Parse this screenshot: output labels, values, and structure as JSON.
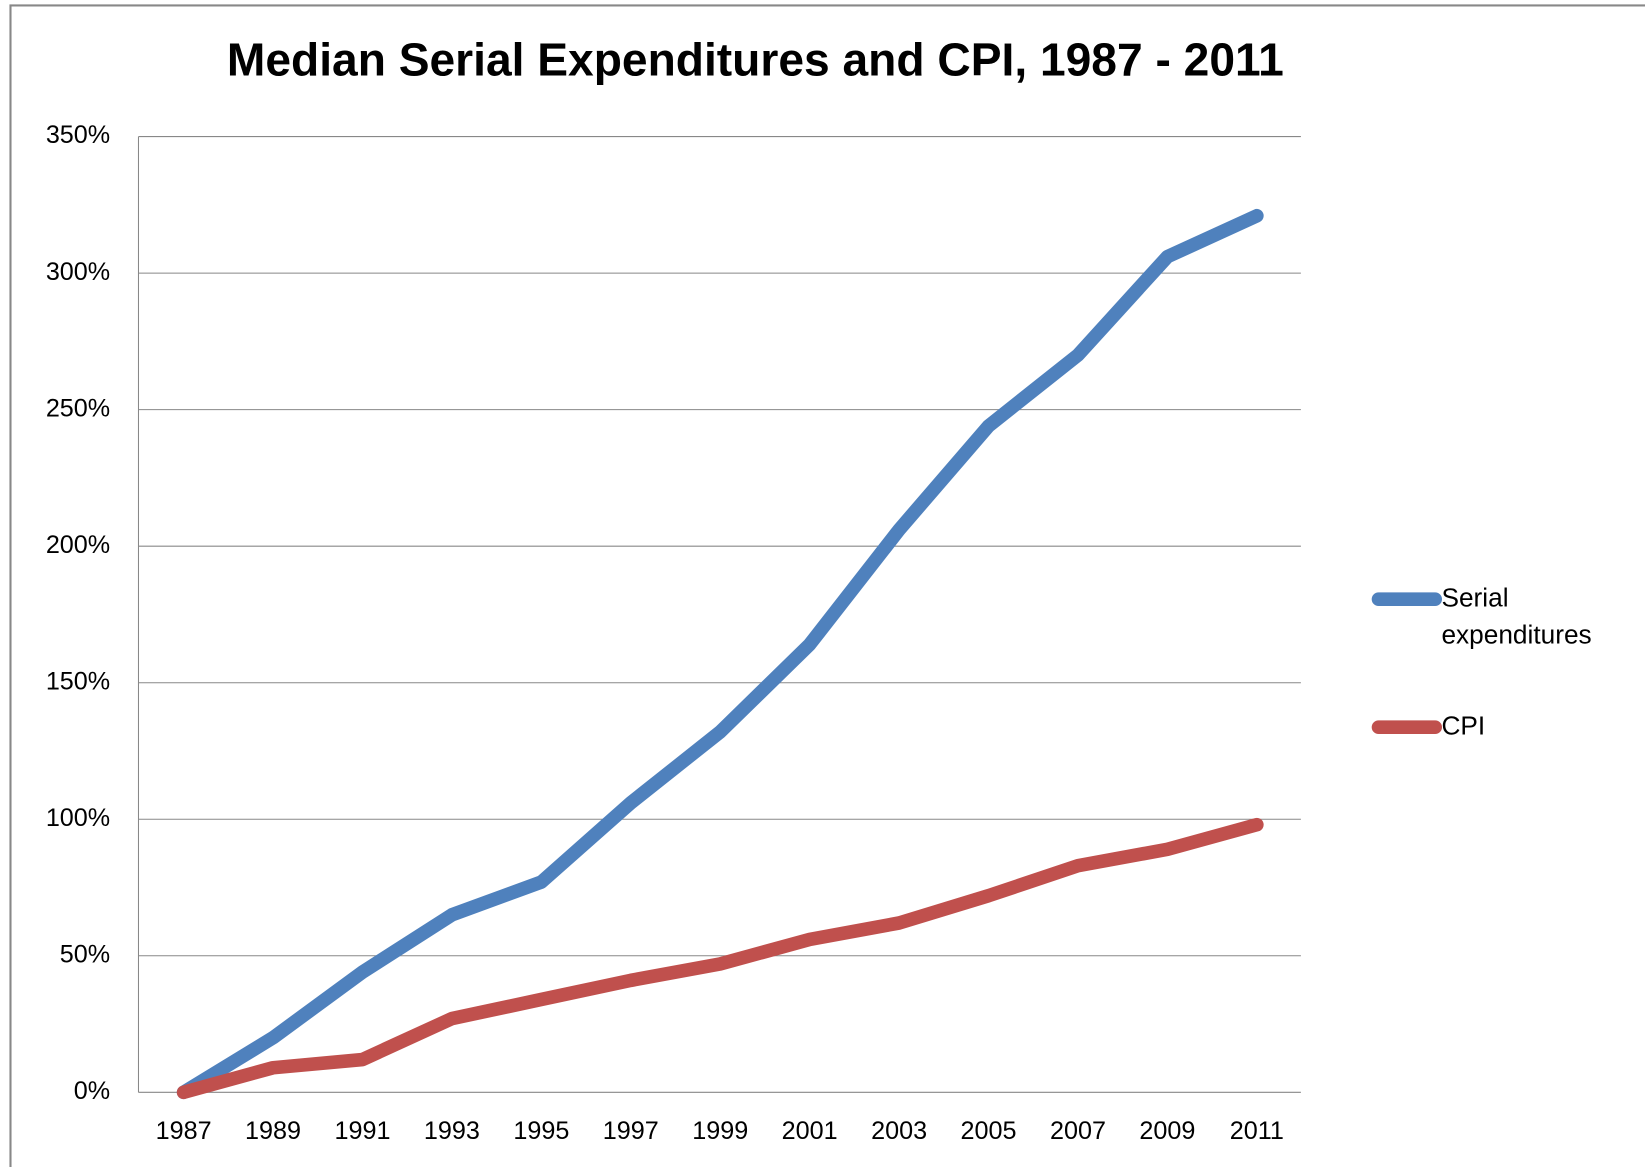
{
  "chart_data": {
    "type": "line",
    "title": "Median Serial Expenditures and CPI, 1987 - 2011",
    "categories": [
      "1987",
      "1989",
      "1991",
      "1993",
      "1995",
      "1997",
      "1999",
      "2001",
      "2003",
      "2005",
      "2007",
      "2009",
      "2011"
    ],
    "series": [
      {
        "name": "Serial expenditures",
        "color": "#4f81bd",
        "values": [
          0,
          20,
          44,
          65,
          77,
          106,
          132,
          164,
          206,
          244,
          270,
          306,
          321
        ]
      },
      {
        "name": "CPI",
        "color": "#c0504d",
        "values": [
          0,
          9,
          12,
          27,
          34,
          41,
          47,
          56,
          62,
          72,
          83,
          89,
          98
        ]
      }
    ],
    "ylim": [
      0,
      350
    ],
    "yticks": [
      {
        "value": 0,
        "label": "0%"
      },
      {
        "value": 50,
        "label": "50%"
      },
      {
        "value": 100,
        "label": "100%"
      },
      {
        "value": 150,
        "label": "150%"
      },
      {
        "value": 200,
        "label": "200%"
      },
      {
        "value": 250,
        "label": "250%"
      },
      {
        "value": 300,
        "label": "300%"
      },
      {
        "value": 350,
        "label": "350%"
      }
    ],
    "grid": true,
    "legend": "right"
  }
}
